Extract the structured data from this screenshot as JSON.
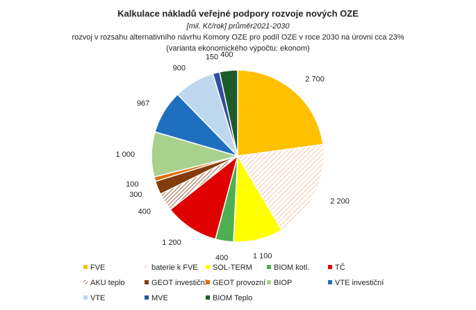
{
  "chart_data": {
    "type": "pie",
    "title": "Kalkulace nákladů veřejné podpory rozvoje nových OZE",
    "subtitle_lines": [
      "[mil. Kč/rok] průměr2021-2030",
      "rozvoj v rozsahu alternativního návrhu Komory OZE pro podíl OZE v roce 2030 na úrovni cca 23%",
      "(varianta ekonomického výpočtu: ekonom)"
    ],
    "legend_position": "bottom",
    "slices": [
      {
        "name": "FVE",
        "value": 2700,
        "label": "2 700",
        "color": "#FFC000",
        "pattern": "none"
      },
      {
        "name": "baterie k FVE",
        "value": 2200,
        "label": "2 200",
        "color": "#F4B183",
        "pattern": "hatch-light"
      },
      {
        "name": "SOL-TERM",
        "value": 1100,
        "label": "1 100",
        "color": "#FFFF00",
        "pattern": "none"
      },
      {
        "name": "BIOM kotl.",
        "value": 400,
        "label": "400",
        "color": "#4CAF50",
        "pattern": "none"
      },
      {
        "name": "TČ",
        "value": 1200,
        "label": "1 200",
        "color": "#E00000",
        "pattern": "none"
      },
      {
        "name": "AKU teplo",
        "value": 400,
        "label": "400",
        "color": "#8B3A0F",
        "pattern": "hatch-dark"
      },
      {
        "name": "GEOT investiční",
        "value": 300,
        "label": "300",
        "color": "#843C0C",
        "pattern": "none"
      },
      {
        "name": "GEOT provozní",
        "value": 100,
        "label": "100",
        "color": "#E26B0A",
        "pattern": "none"
      },
      {
        "name": "BIOP",
        "value": 1000,
        "label": "1 000",
        "color": "#A9D18E",
        "pattern": "none"
      },
      {
        "name": "VTE investiční",
        "value": 967,
        "label": "967",
        "color": "#1F6FBF",
        "pattern": "none"
      },
      {
        "name": "VTE",
        "value": 900,
        "label": "900",
        "color": "#BDD7EE",
        "pattern": "none"
      },
      {
        "name": "MVE",
        "value": 150,
        "label": "150",
        "color": "#2F4F9F",
        "pattern": "none"
      },
      {
        "name": "BIOM Teplo",
        "value": 400,
        "label": "400",
        "color": "#1E5B2A",
        "pattern": "none"
      }
    ]
  }
}
